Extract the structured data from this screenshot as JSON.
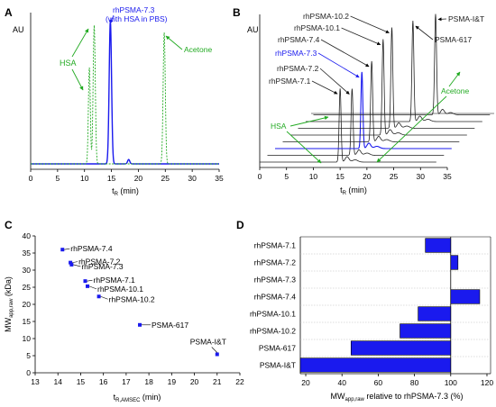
{
  "panel_labels": [
    "A",
    "B",
    "C",
    "D"
  ],
  "chart_data": [
    {
      "panel": "A",
      "type": "line",
      "ylabel": "AU",
      "xlabel": "t_R (min)",
      "xlabel_main": "t",
      "xlabel_sub": "R",
      "xlabel_tail": " (min)",
      "xlim": [
        0,
        35
      ],
      "xticks": [
        "0",
        "5",
        "10",
        "15",
        "20",
        "25",
        "30",
        "35"
      ],
      "series": [
        {
          "name": "rhPSMA-7.3 (with HSA in PBS)",
          "color": "#1a1aee",
          "style": "solid",
          "peaks": [
            {
              "x": 14.8,
              "h": 0.98,
              "w": 0.22
            },
            {
              "x": 18.2,
              "h": 0.03,
              "w": 0.2
            }
          ]
        },
        {
          "name": "HSA / Acetone reference",
          "color": "#22aa22",
          "style": "dashed",
          "peaks": [
            {
              "x": 10.9,
              "h": 0.66,
              "w": 0.18
            },
            {
              "x": 11.8,
              "h": 0.95,
              "w": 0.2
            },
            {
              "x": 24.8,
              "h": 0.9,
              "w": 0.2
            }
          ]
        }
      ],
      "annotations": [
        {
          "text": "rhPSMA-7.3",
          "color": "#1a1aee"
        },
        {
          "text": "(with HSA in PBS)",
          "color": "#1a1aee"
        },
        {
          "text": "HSA",
          "color": "#22aa22"
        },
        {
          "text": "Acetone",
          "color": "#22aa22"
        }
      ]
    },
    {
      "panel": "B",
      "type": "line",
      "ylabel": "AU",
      "xlabel": "t_R (min)",
      "xlabel_main": "t",
      "xlabel_sub": "R",
      "xlabel_tail": " (min)",
      "xlim": [
        0,
        35
      ],
      "xticks": [
        "0",
        "5",
        "10",
        "15",
        "20",
        "25",
        "30",
        "35"
      ],
      "traces": [
        {
          "label": "rhPSMA-7.1",
          "peak_x": 15.0,
          "color": "#222222"
        },
        {
          "label": "rhPSMA-7.2",
          "peak_x": 15.8,
          "color": "#222222"
        },
        {
          "label": "rhPSMA-7.3",
          "peak_x": 16.2,
          "color": "#1a1aee"
        },
        {
          "label": "rhPSMA-7.4",
          "peak_x": 16.6,
          "color": "#222222"
        },
        {
          "label": "rhPSMA-10.1",
          "peak_x": 17.3,
          "color": "#222222"
        },
        {
          "label": "rhPSMA-10.2",
          "peak_x": 17.5,
          "color": "#222222"
        },
        {
          "label": "PSMA-617",
          "peak_x": 20.0,
          "color": "#222222"
        },
        {
          "label": "PSMA-I&T",
          "peak_x": 22.8,
          "color": "#222222"
        }
      ],
      "annotations": [
        {
          "text": "HSA",
          "color": "#22aa22"
        },
        {
          "text": "Acetone",
          "color": "#22aa22"
        }
      ]
    },
    {
      "panel": "C",
      "type": "scatter",
      "ylabel": "MW_app,raw (kDa)",
      "ylabel_main": "MW",
      "ylabel_sub": "app,raw",
      "ylabel_tail": " (kDa)",
      "xlabel": "t_R,AMSEC (min)",
      "xlabel_main": "t",
      "xlabel_sub": "R,AMSEC",
      "xlabel_tail": " (min)",
      "xlim": [
        13,
        22
      ],
      "ylim": [
        0,
        40
      ],
      "xticks": [
        "13",
        "14",
        "15",
        "16",
        "17",
        "18",
        "19",
        "20",
        "21",
        "22"
      ],
      "yticks": [
        "0",
        "5",
        "10",
        "15",
        "20",
        "25",
        "30",
        "35",
        "40"
      ],
      "color": "#1a1aee",
      "points": [
        {
          "label": "rhPSMA-7.4",
          "x": 14.2,
          "y": 36.0
        },
        {
          "label": "rhPSMA-7.2",
          "x": 14.55,
          "y": 32.2
        },
        {
          "label": "rhPSMA-7.3",
          "x": 14.6,
          "y": 31.6
        },
        {
          "label": "rhPSMA-7.1",
          "x": 15.2,
          "y": 26.8
        },
        {
          "label": "rhPSMA-10.1",
          "x": 15.3,
          "y": 25.3
        },
        {
          "label": "rhPSMA-10.2",
          "x": 15.8,
          "y": 22.3
        },
        {
          "label": "PSMA-617",
          "x": 17.6,
          "y": 14.0
        },
        {
          "label": "PSMA-I&T",
          "x": 21.0,
          "y": 5.4
        }
      ]
    },
    {
      "panel": "D",
      "type": "bar",
      "orientation": "horizontal",
      "xlabel": "MW_app,raw relative to rhPSMA-7.3 (%)",
      "xlabel_main": "MW",
      "xlabel_sub": "app,raw",
      "xlabel_tail": " relative to rhPSMA-7.3 (%)",
      "xlim": [
        17,
        122
      ],
      "baseline": 100,
      "xticks": [
        "20",
        "40",
        "60",
        "80",
        "100",
        "120"
      ],
      "color": "#1a1aee",
      "categories": [
        "rhPSMA-7.1",
        "rhPSMA-7.2",
        "rhPSMA-7.3",
        "rhPSMA-7.4",
        "rhPSMA-10.1",
        "rhPSMA-10.2",
        "PSMA-617",
        "PSMA-I&T"
      ],
      "values": [
        86,
        104,
        100,
        116,
        82,
        72,
        45,
        17
      ]
    }
  ]
}
